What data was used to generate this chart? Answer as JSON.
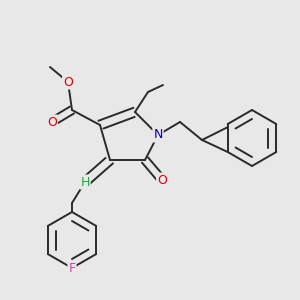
{
  "bg_color": "#e8e8e8",
  "bond_color": "#2a2a2a",
  "bond_lw": 1.4,
  "dbo": 0.013,
  "atom_colors": {
    "O": "#dd0000",
    "N": "#0000cc",
    "F": "#cc44aa",
    "H": "#22aa44",
    "C": "#2a2a2a"
  },
  "fs": 8.5
}
